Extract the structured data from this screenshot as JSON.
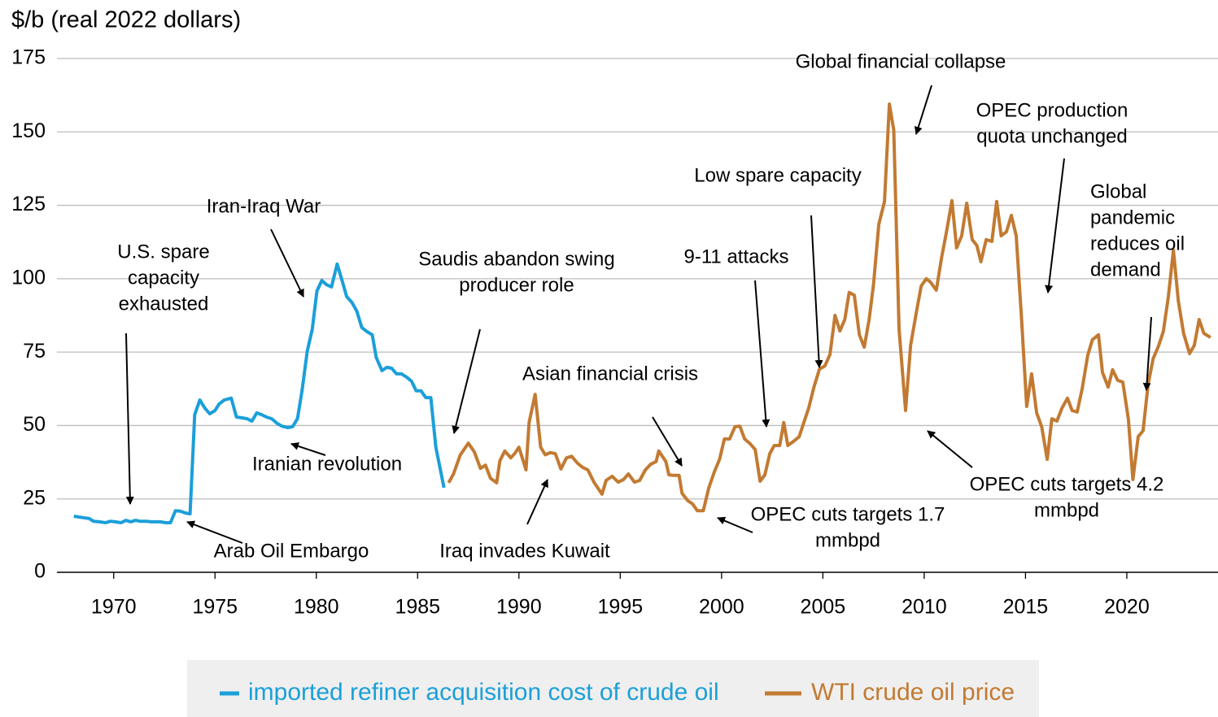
{
  "chart_data": {
    "type": "line",
    "y_label": "$/b (real 2022 dollars)",
    "xlim": [
      1967.2,
      2024.5
    ],
    "xticks": [
      1970,
      1975,
      1980,
      1985,
      1990,
      1995,
      2000,
      2005,
      2010,
      2015,
      2020
    ],
    "ylim": [
      0,
      175
    ],
    "yticks": [
      0,
      25,
      50,
      75,
      100,
      125,
      150,
      175
    ],
    "grid": true,
    "legend": "bottom",
    "series": [
      {
        "name": "imported refiner acquisition cost of crude oil",
        "color": "#1b9fd9",
        "x": [
          1968.03,
          1968.5,
          1968.8,
          1969.0,
          1969.3,
          1969.6,
          1969.84,
          1970.08,
          1970.36,
          1970.6,
          1970.84,
          1971.08,
          1971.3,
          1971.6,
          1971.85,
          1972.1,
          1972.3,
          1972.57,
          1972.8,
          1973.05,
          1973.3,
          1973.53,
          1973.77,
          1974.0,
          1974.25,
          1974.5,
          1974.74,
          1975.0,
          1975.2,
          1975.46,
          1975.8,
          1976.06,
          1976.34,
          1976.58,
          1976.82,
          1977.06,
          1977.3,
          1977.54,
          1977.8,
          1978.07,
          1978.3,
          1978.6,
          1978.83,
          1979.07,
          1979.3,
          1979.55,
          1979.8,
          1980.03,
          1980.27,
          1980.5,
          1980.75,
          1981.03,
          1981.27,
          1981.5,
          1981.76,
          1982.0,
          1982.24,
          1982.5,
          1982.76,
          1982.96,
          1983.24,
          1983.48,
          1983.72,
          1983.96,
          1984.2,
          1984.45,
          1984.7,
          1984.93,
          1985.17,
          1985.4,
          1985.65,
          1985.9,
          1986.3
        ],
        "values": [
          19.1,
          18.6,
          18.3,
          17.4,
          17.2,
          16.9,
          17.4,
          17.2,
          16.9,
          17.7,
          17.2,
          17.7,
          17.4,
          17.4,
          17.2,
          17.2,
          17.2,
          16.9,
          16.9,
          21,
          20.8,
          20.2,
          19.9,
          53.7,
          58.7,
          55.9,
          54,
          55.1,
          57.3,
          58.7,
          59.3,
          52.9,
          52.6,
          52.3,
          51.5,
          54.3,
          53.7,
          52.9,
          52.3,
          50.7,
          49.8,
          49.3,
          49.6,
          52.3,
          62,
          75.3,
          82.8,
          95.8,
          99.4,
          98,
          97.2,
          105,
          99.4,
          93.9,
          91.9,
          88.9,
          83.4,
          82,
          80.9,
          73.1,
          68.7,
          69.8,
          69.5,
          67.6,
          67.6,
          66.5,
          65.1,
          61.8,
          61.8,
          59.5,
          59.5,
          42.6,
          28.8
        ]
      },
      {
        "name": "WTI crude oil price",
        "color": "#c27a32",
        "x": [
          1986.53,
          1986.77,
          1987.1,
          1987.5,
          1987.8,
          1988.1,
          1988.35,
          1988.6,
          1988.9,
          1989.06,
          1989.3,
          1989.6,
          1989.8,
          1990.0,
          1990.35,
          1990.5,
          1990.8,
          1991.07,
          1991.3,
          1991.55,
          1991.8,
          1992.07,
          1992.35,
          1992.6,
          1992.9,
          1993.15,
          1993.4,
          1993.7,
          1994.1,
          1994.3,
          1994.6,
          1994.9,
          1995.16,
          1995.4,
          1995.7,
          1995.96,
          1996.24,
          1996.5,
          1996.77,
          1996.9,
          1997.25,
          1997.4,
          1997.65,
          1997.9,
          1998.05,
          1998.33,
          1998.57,
          1998.8,
          1999.1,
          1999.37,
          1999.65,
          1999.9,
          2000.14,
          2000.4,
          2000.66,
          2000.9,
          2001.14,
          2001.38,
          2001.66,
          2001.9,
          2002.14,
          2002.38,
          2002.6,
          2002.87,
          2003.07,
          2003.27,
          2003.55,
          2003.83,
          2004.07,
          2004.3,
          2004.55,
          2004.83,
          2005.1,
          2005.35,
          2005.6,
          2005.84,
          2006.08,
          2006.3,
          2006.55,
          2006.8,
          2007.04,
          2007.28,
          2007.5,
          2007.76,
          2008.04,
          2008.28,
          2008.5,
          2008.76,
          2009.08,
          2009.33,
          2009.6,
          2009.85,
          2010.1,
          2010.3,
          2010.6,
          2010.85,
          2011.1,
          2011.37,
          2011.6,
          2011.85,
          2012.1,
          2012.37,
          2012.6,
          2012.8,
          2013.06,
          2013.34,
          2013.58,
          2013.8,
          2014.06,
          2014.3,
          2014.54,
          2014.8,
          2015.06,
          2015.3,
          2015.55,
          2015.8,
          2016.07,
          2016.3,
          2016.55,
          2016.8,
          2017.07,
          2017.3,
          2017.55,
          2017.8,
          2018.07,
          2018.3,
          2018.6,
          2018.8,
          2019.08,
          2019.3,
          2019.55,
          2019.8,
          2020.08,
          2020.3,
          2020.56,
          2020.8,
          2021.05,
          2021.3,
          2021.56,
          2021.8,
          2022.05,
          2022.3,
          2022.54,
          2022.8,
          2023.1,
          2023.33,
          2023.57,
          2023.8,
          2024.13
        ],
        "values": [
          30.5,
          33.5,
          39.9,
          44,
          41,
          35.4,
          36.5,
          32,
          30.5,
          38,
          41.3,
          39,
          40.5,
          42.6,
          34.9,
          51,
          60.6,
          42.6,
          40,
          40.8,
          40.4,
          35.2,
          39,
          39.5,
          37.1,
          35.7,
          34.9,
          30.7,
          26.6,
          31.3,
          32.7,
          30.7,
          31.6,
          33.5,
          30.7,
          31.3,
          34.9,
          36.8,
          37.7,
          41.3,
          37.7,
          33.2,
          33,
          33,
          26.9,
          24.4,
          23.3,
          21,
          21,
          28.8,
          34.3,
          38.5,
          45.4,
          45.4,
          49.6,
          49.8,
          45.4,
          44,
          41.8,
          31,
          33.2,
          40.4,
          43.2,
          43.2,
          51,
          43.2,
          44.6,
          46.2,
          51.2,
          55.9,
          62.9,
          69.2,
          70.3,
          74.2,
          87.5,
          82.2,
          86.1,
          95.3,
          94.4,
          80.9,
          76.7,
          86.1,
          98,
          118.5,
          126.3,
          159.5,
          150.6,
          82.8,
          55.1,
          77.3,
          88,
          97.5,
          100,
          98.9,
          96.1,
          106.9,
          116,
          126.6,
          110.5,
          114.6,
          125.7,
          113.3,
          111.3,
          105.8,
          113.3,
          112.7,
          126.3,
          114.6,
          116,
          121.6,
          114.6,
          87,
          56.5,
          67.6,
          54.3,
          49.6,
          38.5,
          52.3,
          51.5,
          55.9,
          59.3,
          55.1,
          54.6,
          62.6,
          73.9,
          79.2,
          80.9,
          68.1,
          63.1,
          69,
          65.4,
          64.8,
          52.1,
          31.6,
          46.2,
          48.2,
          64,
          72.8,
          77,
          82,
          93.9,
          109.7,
          92.5,
          81.4,
          74.5,
          77.3,
          86.1,
          81.4,
          80
        ]
      }
    ],
    "annotations": [
      {
        "lines": [
          "U.S. spare",
          "capacity",
          "exhausted"
        ]
      },
      {
        "lines": [
          "Iran-Iraq War"
        ]
      },
      {
        "lines": [
          "Iranian revolution"
        ]
      },
      {
        "lines": [
          "Arab Oil Embargo"
        ]
      },
      {
        "lines": [
          "Saudis abandon swing",
          "producer role"
        ]
      },
      {
        "lines": [
          "Asian financial crisis"
        ]
      },
      {
        "lines": [
          "Iraq invades Kuwait"
        ]
      },
      {
        "lines": [
          "9-11 attacks"
        ]
      },
      {
        "lines": [
          "Low spare capacity"
        ]
      },
      {
        "lines": [
          "Global financial collapse"
        ]
      },
      {
        "lines": [
          "OPEC production",
          "quota unchanged"
        ]
      },
      {
        "lines": [
          "Global",
          "pandemic",
          "reduces oil",
          "demand"
        ]
      },
      {
        "lines": [
          "OPEC cuts targets 1.7",
          "mmbpd"
        ]
      },
      {
        "lines": [
          "OPEC cuts targets 4.2",
          "mmbpd"
        ]
      }
    ]
  }
}
